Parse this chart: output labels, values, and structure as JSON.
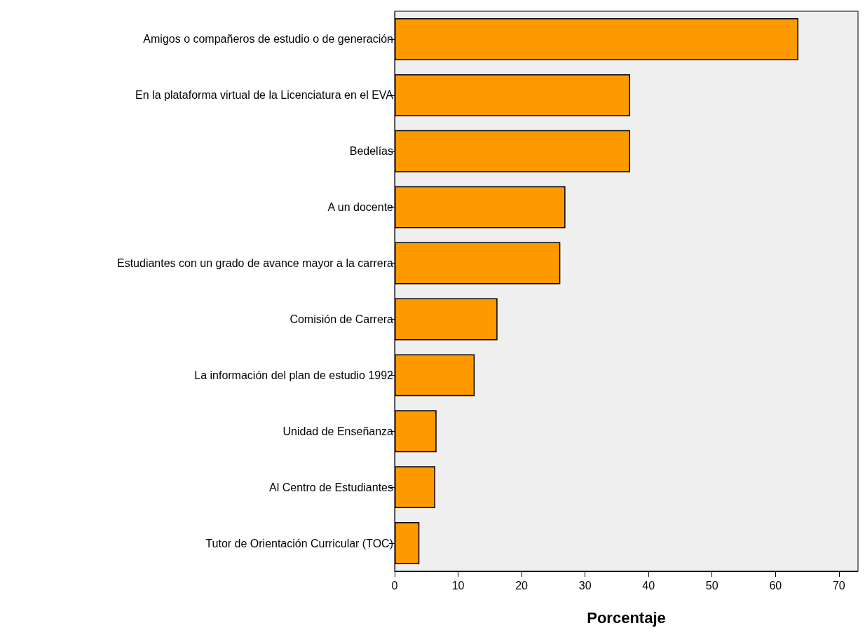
{
  "chart_data": {
    "type": "bar",
    "orientation": "horizontal",
    "xlabel": "Porcentaje",
    "categories": [
      "Amigos o compañeros de estudio o de generación",
      "En la plataforma virtual de la Licenciatura en el EVA",
      "Bedelías",
      "A un docente",
      "Estudiantes con un grado de avance mayor a la carrera",
      "Comisión de Carrera",
      "La información del plan de estudio 1992",
      "Unidad de Enseñanza",
      "Al Centro de Estudiantes",
      "Tutor de Orientación Curricular (TOC)"
    ],
    "values": [
      63.6,
      37.1,
      37.1,
      26.9,
      26.1,
      16.2,
      12.6,
      6.6,
      6.4,
      3.9
    ],
    "color": "#ff9900",
    "xlim": [
      0,
      73
    ],
    "xticks": [
      0,
      10,
      20,
      30,
      40,
      50,
      60,
      70
    ],
    "grid": false
  }
}
